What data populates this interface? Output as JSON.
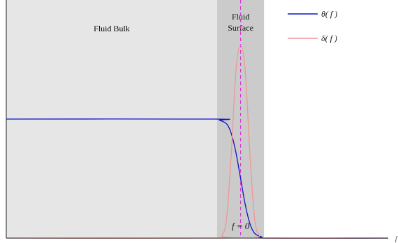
{
  "chart_data": {
    "type": "line",
    "xlim": [
      -1.0,
      0.63
    ],
    "ylim": [
      0,
      1.0
    ],
    "grid": false,
    "legend_position": "top-right",
    "regions": [
      {
        "label": "Fluid  Bulk",
        "x_range": [
          -1.0,
          -0.1
        ],
        "color": "#e6e6e6"
      },
      {
        "label_lines": [
          "Fluid",
          "Surface"
        ],
        "x_range": [
          -0.1,
          0.1
        ],
        "color": "#cbcbcb"
      }
    ],
    "series": [
      {
        "name": "θ( f )",
        "color": "#0a14c8",
        "x": [
          -1.0,
          -0.12,
          -0.09,
          -0.06,
          -0.04,
          -0.02,
          0.0,
          0.02,
          0.04,
          0.06,
          0.09,
          0.12,
          0.63
        ],
        "y": [
          0.5,
          0.5,
          0.495,
          0.48,
          0.44,
          0.36,
          0.25,
          0.14,
          0.06,
          0.02,
          0.005,
          0.0,
          0.0
        ]
      },
      {
        "name": "δ( f )",
        "color": "#f09696",
        "x": [
          -1.0,
          -0.1,
          -0.08,
          -0.06,
          -0.04,
          -0.02,
          0.0,
          0.02,
          0.04,
          0.06,
          0.08,
          0.1,
          0.63
        ],
        "y": [
          0.0,
          0.0,
          0.01,
          0.08,
          0.35,
          0.7,
          0.81,
          0.7,
          0.35,
          0.08,
          0.01,
          0.0,
          0.0
        ]
      }
    ],
    "annotations": [
      {
        "text": "f = 0",
        "x": 0.0,
        "note": "dashed vertical line at interface"
      }
    ],
    "xlabel": "f",
    "ylabel": "",
    "reference_line": {
      "x": 0.0,
      "color": "#d633d6",
      "style": "dashed"
    }
  }
}
